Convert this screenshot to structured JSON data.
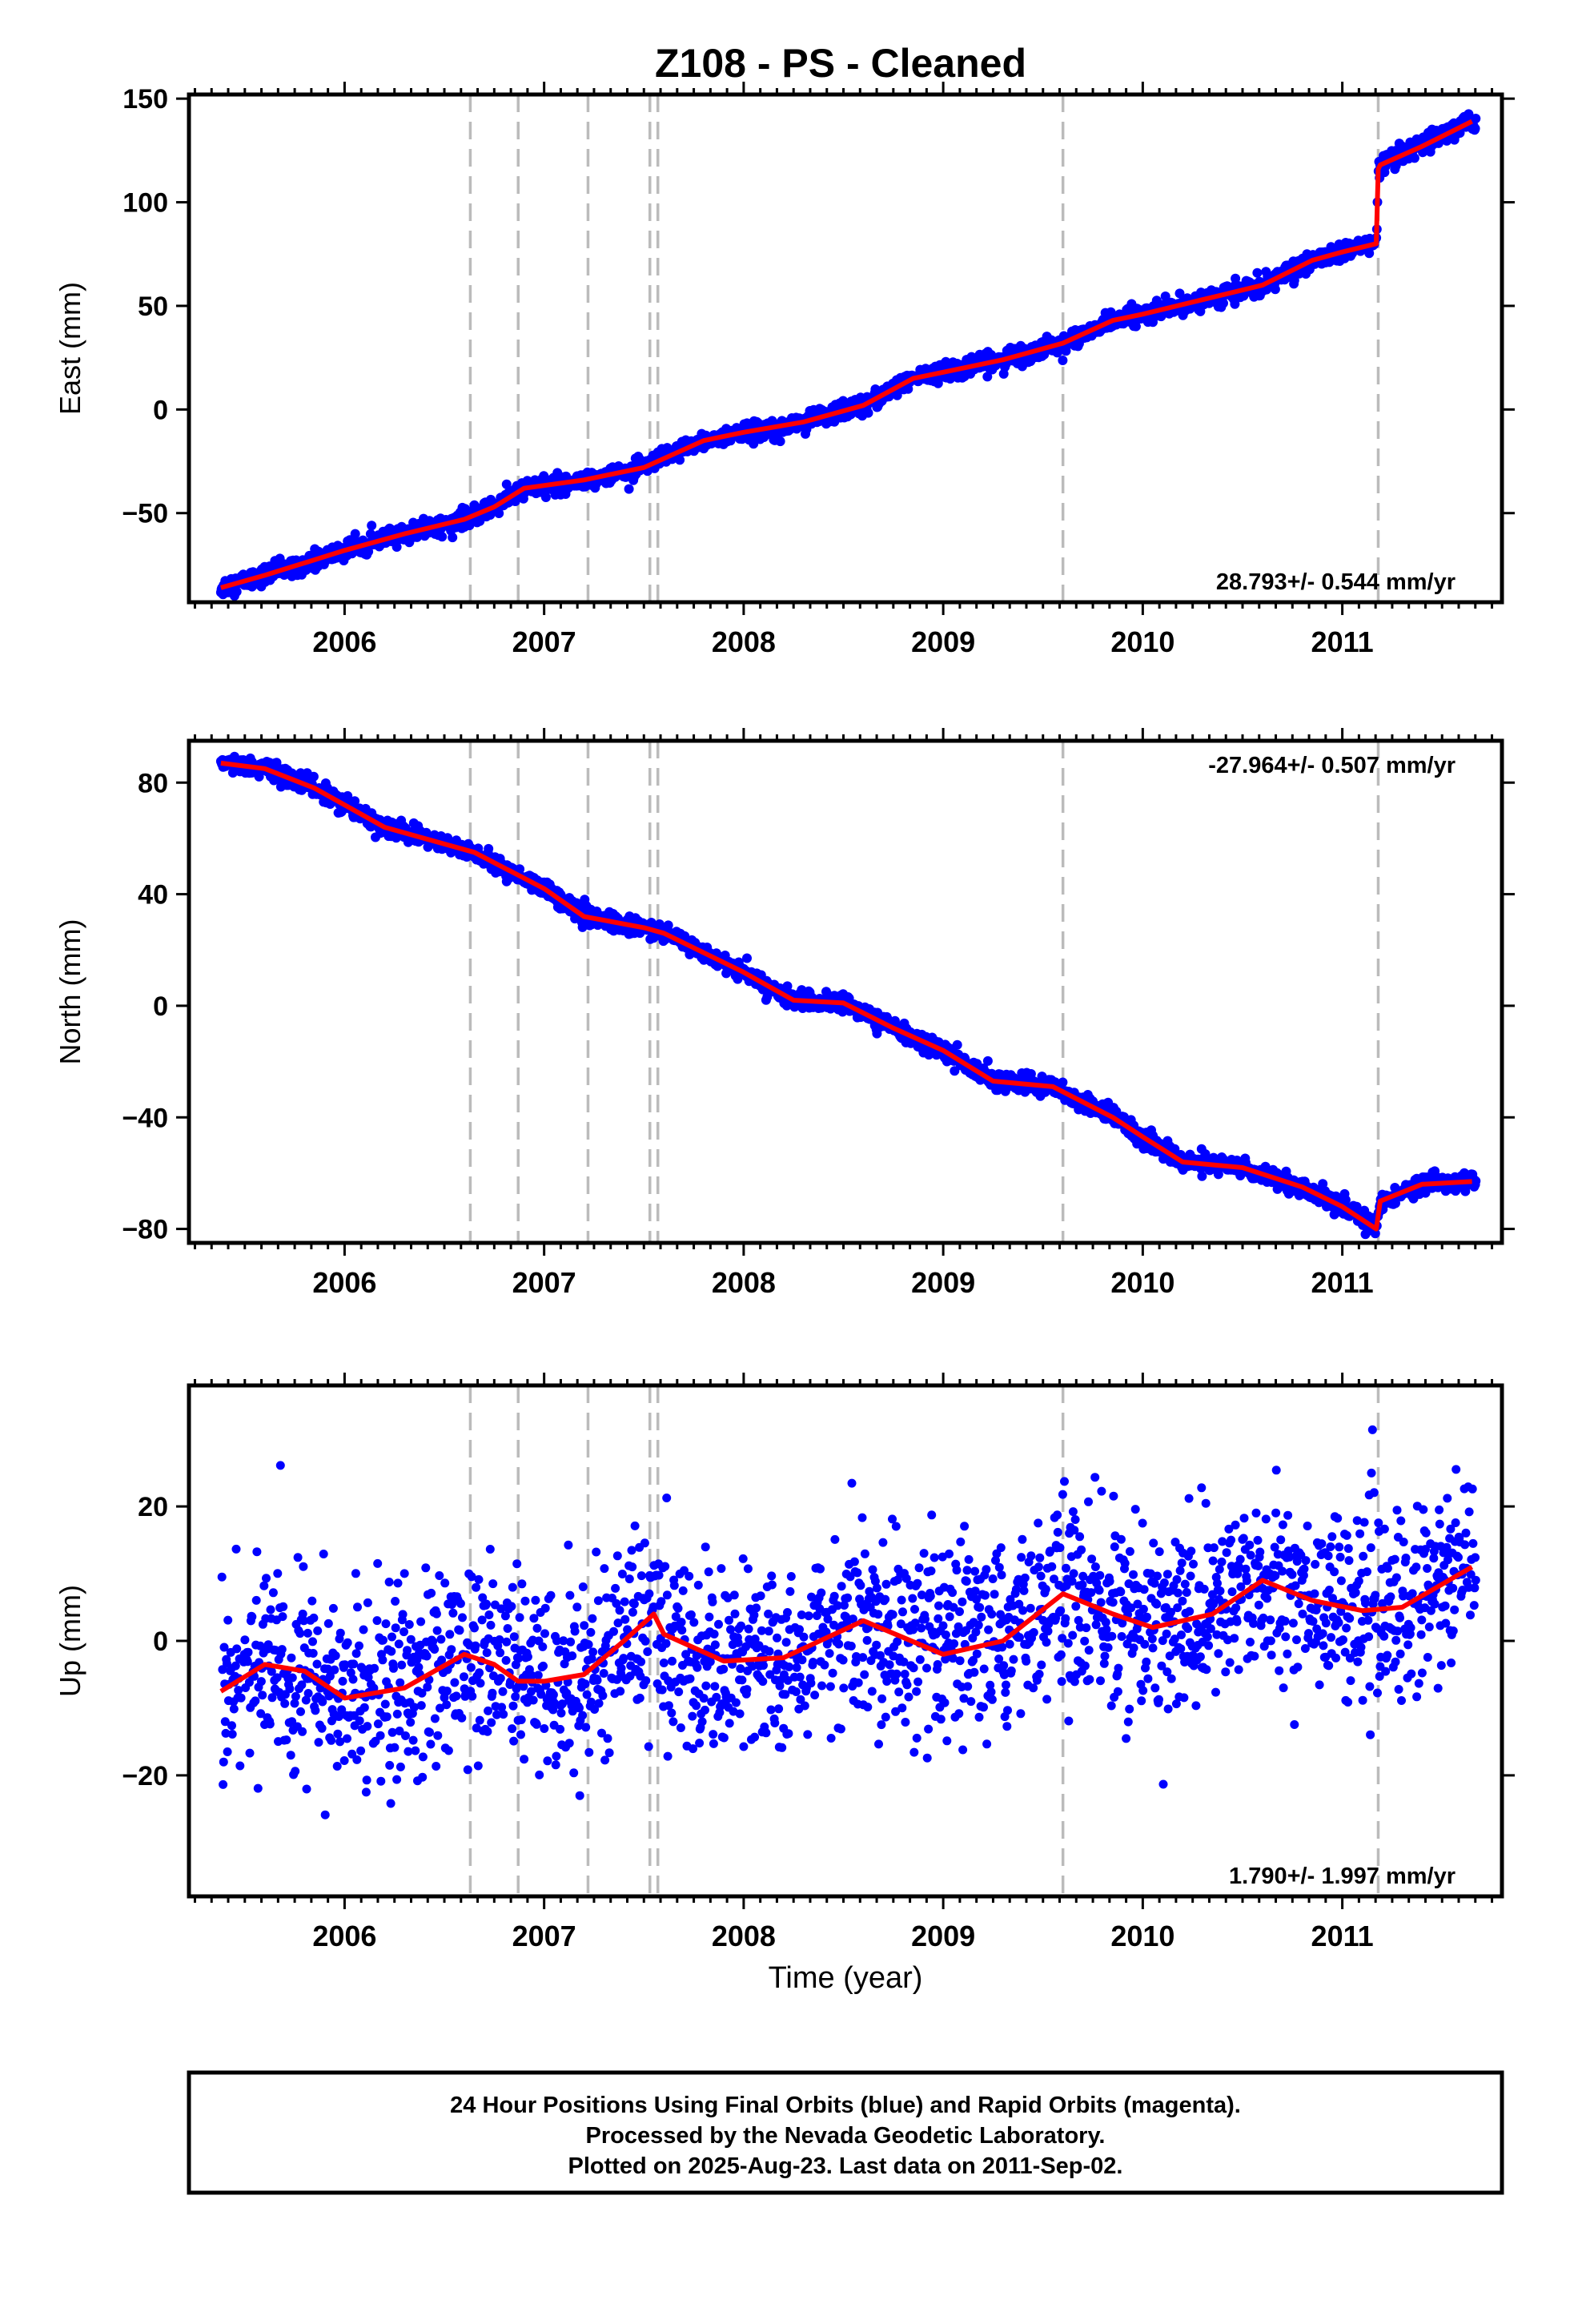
{
  "chart_data": {
    "type": "scatter",
    "title": "Z108  - PS - Cleaned",
    "xlabel": "Time (year)",
    "xticks": [
      "2006",
      "2007",
      "2008",
      "2009",
      "2010",
      "2011"
    ],
    "xlim": [
      2005.22,
      2011.8
    ],
    "event_lines": [
      2006.63,
      2006.87,
      2007.22,
      2007.53,
      2007.57,
      2009.6,
      2011.18
    ],
    "colors": {
      "points": "#0000ff",
      "fit": "#ff0000",
      "event": "#bbbbbb",
      "frame": "#000000"
    },
    "panels": [
      {
        "name": "east",
        "ylabel": "East (mm)",
        "ylim": [
          -93,
          152
        ],
        "yticks": [
          150,
          100,
          50,
          0,
          -50
        ],
        "yticklabels": [
          "150",
          "100",
          "50",
          "0",
          "−50"
        ],
        "rate_label": "28.793+/- 0.544 mm/yr",
        "rate_position": "bottom-right",
        "noise": 2.2,
        "fit_x": [
          2005.38,
          2005.6,
          2006.0,
          2006.3,
          2006.6,
          2006.75,
          2006.9,
          2007.2,
          2007.5,
          2007.8,
          2008.0,
          2008.3,
          2008.6,
          2008.85,
          2009.0,
          2009.3,
          2009.6,
          2009.85,
          2010.0,
          2010.3,
          2010.6,
          2010.85,
          2011.0,
          2011.17,
          2011.18,
          2011.19,
          2011.4,
          2011.65
        ],
        "fit_y": [
          -86,
          -80,
          -68,
          -60,
          -53,
          -47,
          -38,
          -34,
          -28,
          -15,
          -11,
          -6,
          2,
          15,
          18,
          24,
          32,
          43,
          46,
          53,
          60,
          72,
          76,
          80,
          116,
          118,
          127,
          139
        ]
      },
      {
        "name": "north",
        "ylabel": "North (mm)",
        "ylim": [
          -85,
          95
        ],
        "yticks": [
          80,
          40,
          0,
          -40,
          -80
        ],
        "yticklabels": [
          "80",
          "40",
          "0",
          "−40",
          "−80"
        ],
        "rate_label": "-27.964+/- 0.507 mm/yr",
        "rate_position": "top-right",
        "noise": 1.6,
        "fit_x": [
          2005.38,
          2005.6,
          2005.85,
          2006.0,
          2006.2,
          2006.5,
          2006.65,
          2007.0,
          2007.2,
          2007.5,
          2007.6,
          2008.0,
          2008.25,
          2008.5,
          2008.75,
          2009.0,
          2009.25,
          2009.55,
          2009.85,
          2010.0,
          2010.2,
          2010.5,
          2010.8,
          2011.0,
          2011.17,
          2011.19,
          2011.4,
          2011.65
        ],
        "fit_y": [
          87,
          85,
          78,
          72,
          64,
          58,
          55,
          42,
          32,
          28,
          26,
          12,
          2,
          1,
          -8,
          -16,
          -27,
          -29,
          -40,
          -47,
          -56,
          -58,
          -65,
          -72,
          -80,
          -70,
          -64,
          -63
        ]
      },
      {
        "name": "up",
        "ylabel": "Up (mm)",
        "ylim": [
          -38,
          38
        ],
        "yticks": [
          20,
          0,
          -20
        ],
        "yticklabels": [
          "20",
          "0",
          "−20"
        ],
        "rate_label": "1.790+/- 1.997 mm/yr",
        "rate_position": "bottom-right",
        "noise": 7.0,
        "fit_x": [
          2005.38,
          2005.6,
          2005.8,
          2006.0,
          2006.3,
          2006.6,
          2006.75,
          2006.87,
          2007.0,
          2007.2,
          2007.4,
          2007.55,
          2007.6,
          2007.9,
          2008.2,
          2008.6,
          2009.0,
          2009.3,
          2009.6,
          2009.85,
          2010.05,
          2010.35,
          2010.6,
          2010.85,
          2011.1,
          2011.3,
          2011.65
        ],
        "fit_y": [
          -7.5,
          -3.5,
          -4.5,
          -8.5,
          -7,
          -2,
          -3.5,
          -6,
          -6,
          -5,
          0,
          4,
          1,
          -3,
          -2.5,
          3,
          -2,
          0,
          7,
          4,
          2,
          4,
          9,
          6,
          4.5,
          5,
          11
        ]
      }
    ]
  },
  "footer": {
    "line1": "24 Hour Positions Using Final Orbits (blue) and Rapid Orbits (magenta).",
    "line2": "Processed by the Nevada Geodetic Laboratory.",
    "line3": "Plotted on 2025-Aug-23. Last data on 2011-Sep-02."
  }
}
